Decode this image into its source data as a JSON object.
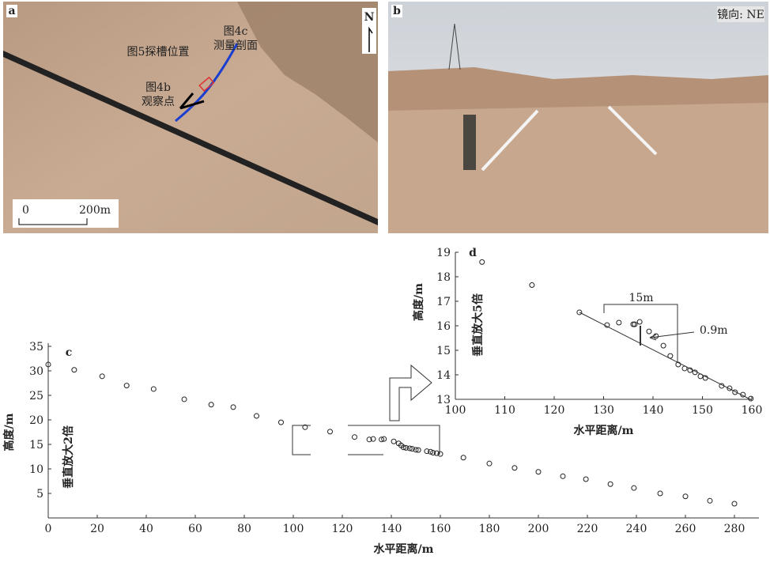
{
  "panel_a": {
    "label": "a",
    "north": "N",
    "scale_start": "0",
    "scale_end": "200m",
    "profile_label": [
      "图4c",
      "测量剖面"
    ],
    "trench_label": "图5探槽位置",
    "observation_label": [
      "图4b",
      "观察点"
    ]
  },
  "panel_b": {
    "label": "b",
    "view": "镜向: NE"
  },
  "chart_data": [
    {
      "type": "scatter",
      "label": "c",
      "note": "垂直放大2倍",
      "xlabel": "水平距离/m",
      "ylabel": "高度/m",
      "x": [
        0,
        10.6,
        22,
        32,
        43,
        55.5,
        66.5,
        75.5,
        85,
        95,
        104.8,
        115,
        125,
        131,
        132.6,
        136,
        137,
        141,
        143,
        144,
        145,
        146,
        147.5,
        148.5,
        150,
        151,
        154.5,
        156,
        157,
        158.5,
        160,
        169.4,
        180,
        190.3,
        200,
        210,
        219.4,
        229.4,
        239,
        249.7,
        260,
        270,
        280
      ],
      "values": [
        31.3,
        30.2,
        28.9,
        27.0,
        26.3,
        24.2,
        23.1,
        22.6,
        20.8,
        19.5,
        18.5,
        17.6,
        16.5,
        16.0,
        16.1,
        16.0,
        16.1,
        15.6,
        15.2,
        14.8,
        14.4,
        14.3,
        14.2,
        14.1,
        13.9,
        13.85,
        13.6,
        13.5,
        13.3,
        13.2,
        13.05,
        12.3,
        11.1,
        10.2,
        9.4,
        8.5,
        7.9,
        6.9,
        6.1,
        5.0,
        4.4,
        3.5,
        2.9
      ],
      "xlim": [
        0,
        290
      ],
      "ylim": [
        0,
        35
      ],
      "xticks": [
        0,
        20,
        40,
        60,
        80,
        100,
        120,
        140,
        160,
        180,
        200,
        220,
        240,
        260,
        280
      ],
      "yticks": [
        5,
        10,
        15,
        20,
        25,
        30,
        35
      ]
    },
    {
      "type": "scatter",
      "label": "d",
      "note": "垂直放大5倍",
      "xlabel": "水平距离/m",
      "ylabel": "高度/m",
      "span_label": "15m",
      "offset_label": "0.9m",
      "x": [
        105.4,
        115.5,
        125.1,
        130.7,
        133.1,
        136,
        136.3,
        137.3,
        139.2,
        140.6,
        142.1,
        143.5,
        145.1,
        146.4,
        147.5,
        148.5,
        149.6,
        150.6,
        153.9,
        155.5,
        156.6,
        158.2,
        159.8
      ],
      "values": [
        18.6,
        17.66,
        16.55,
        16.03,
        16.13,
        16.06,
        16.06,
        16.16,
        15.77,
        15.58,
        15.19,
        14.77,
        14.42,
        14.26,
        14.19,
        14.1,
        13.94,
        13.87,
        13.55,
        13.45,
        13.29,
        13.19,
        13.03
      ],
      "xlim": [
        100,
        160
      ],
      "ylim": [
        13,
        19
      ],
      "xticks": [
        100,
        110,
        120,
        130,
        140,
        150,
        160
      ],
      "yticks": [
        13,
        14,
        15,
        16,
        17,
        18,
        19
      ]
    }
  ]
}
